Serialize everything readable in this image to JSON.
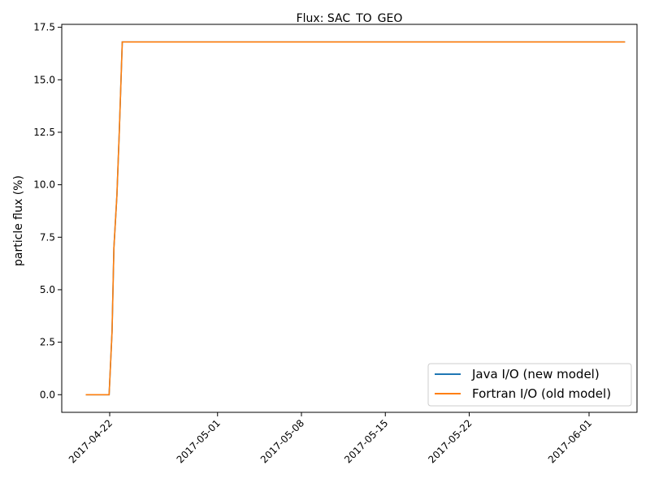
{
  "chart_data": {
    "type": "line",
    "title": "Flux: SAC_TO_GEO",
    "xlabel": "",
    "ylabel": "particle flux (%)",
    "xlim": [
      "2017-04-18",
      "2017-06-05"
    ],
    "ylim": [
      -0.84,
      17.64
    ],
    "x_ticks": [
      "2017-04-22",
      "2017-05-01",
      "2017-05-08",
      "2017-05-15",
      "2017-05-22",
      "2017-06-01"
    ],
    "y_ticks": [
      0.0,
      2.5,
      5.0,
      7.5,
      10.0,
      12.5,
      15.0,
      17.5
    ],
    "y_tick_labels": [
      "0.0",
      "2.5",
      "5.0",
      "7.5",
      "10.0",
      "12.5",
      "15.0",
      "17.5"
    ],
    "grid": false,
    "legend_position": "bottom-right",
    "series": [
      {
        "name": "Java I/O (new model)",
        "color": "#1f77b4",
        "x": [
          "2017-04-20",
          "2017-04-20",
          "2017-04-21",
          "2017-04-21",
          "2017-04-22",
          "2017-04-22",
          "2017-04-22",
          "2017-04-22",
          "2017-04-23",
          "2017-04-23",
          "2017-06-04"
        ],
        "y": [
          0.0,
          0.0,
          0.0,
          0.0,
          3.0,
          7.0,
          9.5,
          12.5,
          16.8,
          16.8,
          16.8
        ]
      },
      {
        "name": "Fortran I/O (old model)",
        "color": "#ff7f0e",
        "x": [
          "2017-04-20",
          "2017-04-20",
          "2017-04-21",
          "2017-04-21",
          "2017-04-22",
          "2017-04-22",
          "2017-04-22",
          "2017-04-22",
          "2017-04-23",
          "2017-04-23",
          "2017-06-04"
        ],
        "y": [
          0.0,
          0.0,
          0.0,
          0.0,
          3.0,
          7.0,
          9.5,
          12.5,
          16.8,
          16.8,
          16.8
        ]
      }
    ]
  }
}
